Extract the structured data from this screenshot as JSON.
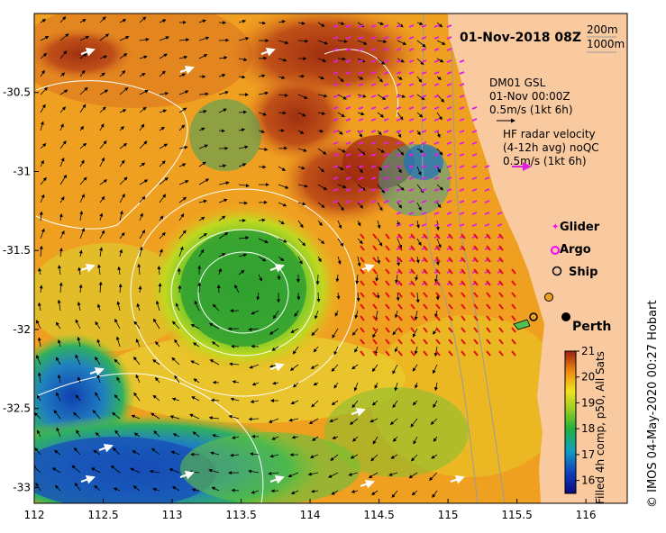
{
  "title": "01-Nov-2018 08Z",
  "bathymetry_legend": [
    "200m",
    "1000m"
  ],
  "model_legend": {
    "line1": "DM01 GSL",
    "line2": "01-Nov 00:00Z",
    "line3": "0.5m/s (1kt 6h)"
  },
  "radar_legend": {
    "line1": "HF radar velocity",
    "line2": "(4-12h avg) noQC",
    "line3": "0.5m/s (1kt 6h)"
  },
  "markers_legend": [
    "Glider",
    "Argo",
    "Ship"
  ],
  "city": "Perth",
  "colorbar": {
    "title": "Filled 4h comp, p50, All Sats",
    "ticks": [
      "21",
      "20",
      "19",
      "18",
      "17",
      "16"
    ],
    "min": 15.5,
    "max": 21
  },
  "copyright": "© IMOS 04-May-2020 00:27 Hobart",
  "axes": {
    "x_ticks": [
      "112",
      "112.5",
      "113",
      "113.5",
      "114",
      "114.5",
      "115",
      "115.5",
      "116"
    ],
    "y_ticks": [
      "-30.5",
      "-31",
      "-31.5",
      "-32",
      "-32.5",
      "-33"
    ],
    "x_range": [
      112,
      116.3
    ],
    "y_range": [
      -33.1,
      -30.0
    ]
  },
  "colors": {
    "land": "#f9c9a0",
    "ocean_warm": "#c0501a",
    "ocean_mid": "#f0a020",
    "ocean_cool": "#40b040",
    "ocean_cold": "#2060c0",
    "radar_arrow": "#e020e0",
    "model_arrow": "#000000",
    "glider": "#ff00ff"
  }
}
